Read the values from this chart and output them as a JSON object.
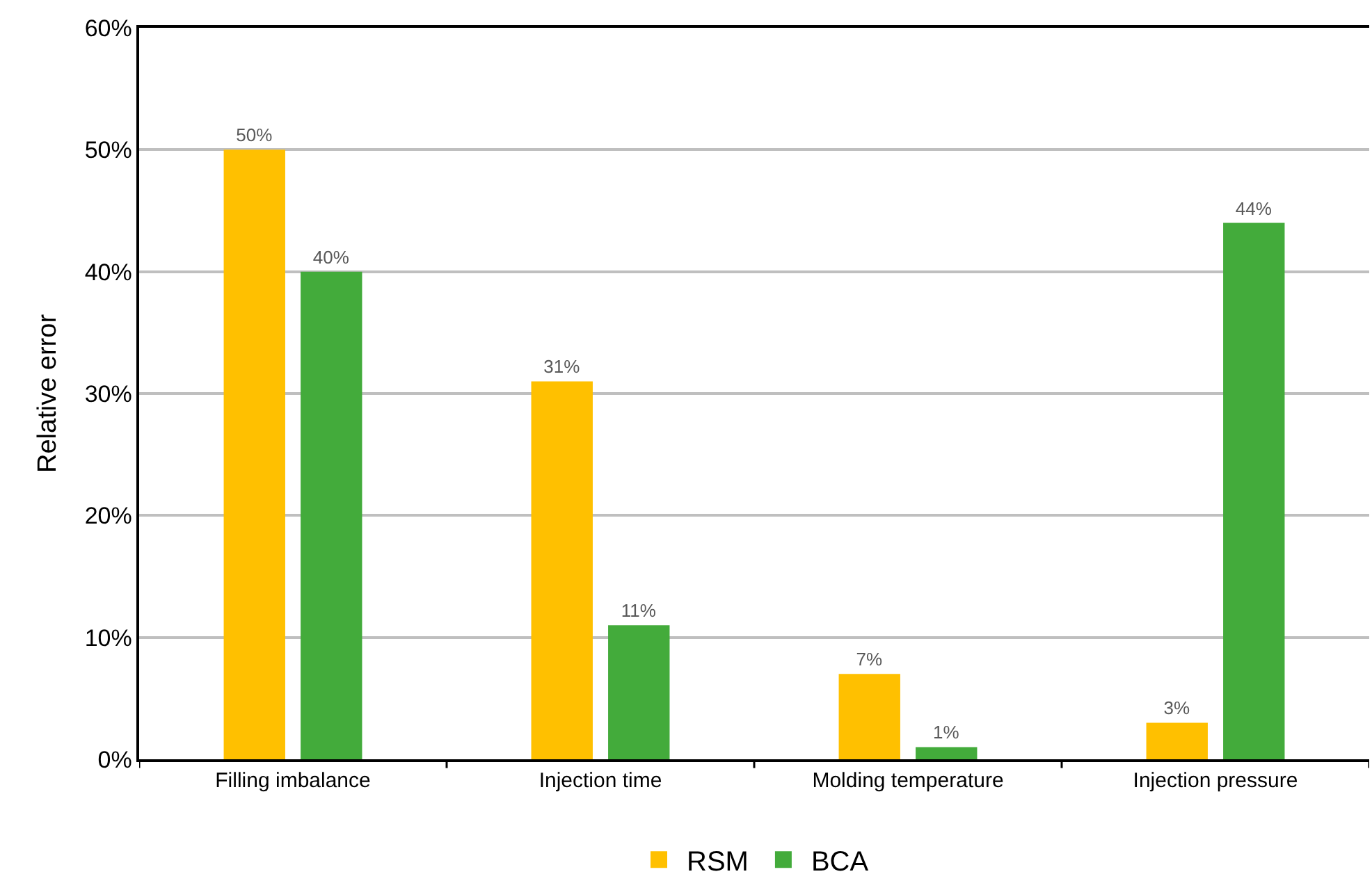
{
  "chart_data": {
    "type": "bar",
    "ylabel": "Relative error",
    "categories": [
      "Filling imbalance",
      "Injection time",
      "Molding temperature",
      "Injection pressure"
    ],
    "series": [
      {
        "name": "RSM",
        "color": "#ffc000",
        "values": [
          50,
          31,
          7,
          3
        ],
        "value_labels": [
          "50%",
          "31%",
          "7%",
          "3%"
        ]
      },
      {
        "name": "BCA",
        "color": "#43ab3b",
        "values": [
          40,
          11,
          1,
          44
        ],
        "value_labels": [
          "40%",
          "11%",
          "1%",
          "44%"
        ]
      }
    ],
    "ylim": [
      0,
      60
    ],
    "yticks": [
      {
        "value": 0,
        "label": "0%"
      },
      {
        "value": 10,
        "label": "10%"
      },
      {
        "value": 20,
        "label": "20%"
      },
      {
        "value": 30,
        "label": "30%"
      },
      {
        "value": 40,
        "label": "40%"
      },
      {
        "value": 50,
        "label": "50%"
      },
      {
        "value": 60,
        "label": "60%"
      }
    ],
    "grid": "y",
    "legend": "bottom"
  }
}
